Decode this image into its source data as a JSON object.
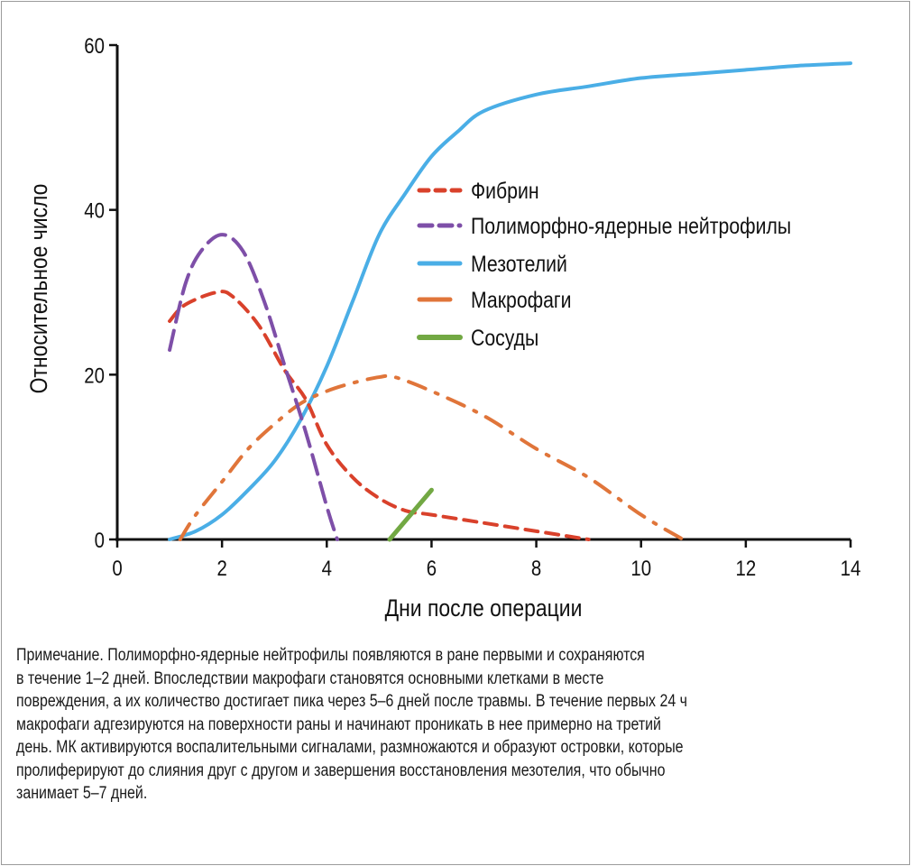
{
  "chart_data": {
    "type": "line",
    "title": "",
    "xlabel": "Дни после операции",
    "ylabel": "Относительное число",
    "xlim": [
      0,
      14
    ],
    "ylim": [
      0,
      60
    ],
    "xticks": [
      0,
      2,
      4,
      6,
      8,
      10,
      12,
      14
    ],
    "yticks": [
      0,
      20,
      40,
      60
    ],
    "grid": false,
    "legend_position": "center-right",
    "series": [
      {
        "name": "Фибрин",
        "color": "#d9412b",
        "style": "dashed",
        "x": [
          1,
          1.3,
          1.9,
          2.2,
          2.7,
          3.2,
          3.6,
          4,
          4.5,
          5,
          5.5,
          6,
          7,
          8,
          9
        ],
        "y": [
          26.5,
          28.5,
          30,
          29.5,
          26,
          20.5,
          17,
          11.5,
          7.5,
          5,
          3.5,
          3,
          2,
          1,
          0
        ]
      },
      {
        "name": "Полиморфно-ядерные нейтрофилы",
        "color": "#7e4fa8",
        "style": "long-dashed",
        "x": [
          1,
          1.3,
          1.6,
          2,
          2.4,
          2.8,
          3.2,
          3.6,
          4,
          4.2
        ],
        "y": [
          23,
          31,
          35,
          37,
          35,
          29,
          21,
          13,
          4,
          0
        ]
      },
      {
        "name": "Мезотелий",
        "color": "#4aaee6",
        "style": "solid",
        "x": [
          1,
          1.5,
          2,
          2.5,
          3,
          3.5,
          4,
          4.5,
          5,
          5.5,
          6,
          6.5,
          7,
          8,
          9,
          10,
          11,
          12,
          13,
          14
        ],
        "y": [
          0,
          1,
          3,
          6,
          9.5,
          14.5,
          21,
          29,
          37,
          42,
          46.5,
          49.5,
          52,
          54,
          55,
          56,
          56.5,
          57,
          57.5,
          57.8
        ]
      },
      {
        "name": "Макрофаги",
        "color": "#e0753a",
        "style": "dash-dot",
        "x": [
          1.2,
          1.5,
          2,
          2.5,
          3,
          3.5,
          4,
          4.5,
          5,
          5.3,
          6,
          7,
          8,
          9,
          10,
          10.8
        ],
        "y": [
          0,
          3,
          7,
          11,
          14,
          16.5,
          18,
          19,
          19.7,
          19.7,
          18,
          15,
          11,
          7.5,
          3,
          0
        ]
      },
      {
        "name": "Сосуды",
        "color": "#72a843",
        "style": "solid",
        "x": [
          5.2,
          6
        ],
        "y": [
          0,
          6
        ]
      }
    ]
  },
  "caption": [
    "Примечание. Полиморфно-ядерные нейтрофилы появляются в ране первыми и сохраняются",
    "в течение 1–2 дней. Впоследствии макрофаги становятся основными клетками в месте",
    "повреждения, а их количество достигает пика через 5–6 дней после травмы. В течение первых 24 ч",
    "макрофаги адгезируются на поверхности раны и начинают проникать в нее примерно на третий",
    "день. МК активируются воспалительными сигналами, размножаются и образуют островки, которые",
    "пролиферируют до слияния друг с другом и завершения восстановления мезотелия, что обычно",
    "занимает 5–7 дней."
  ]
}
